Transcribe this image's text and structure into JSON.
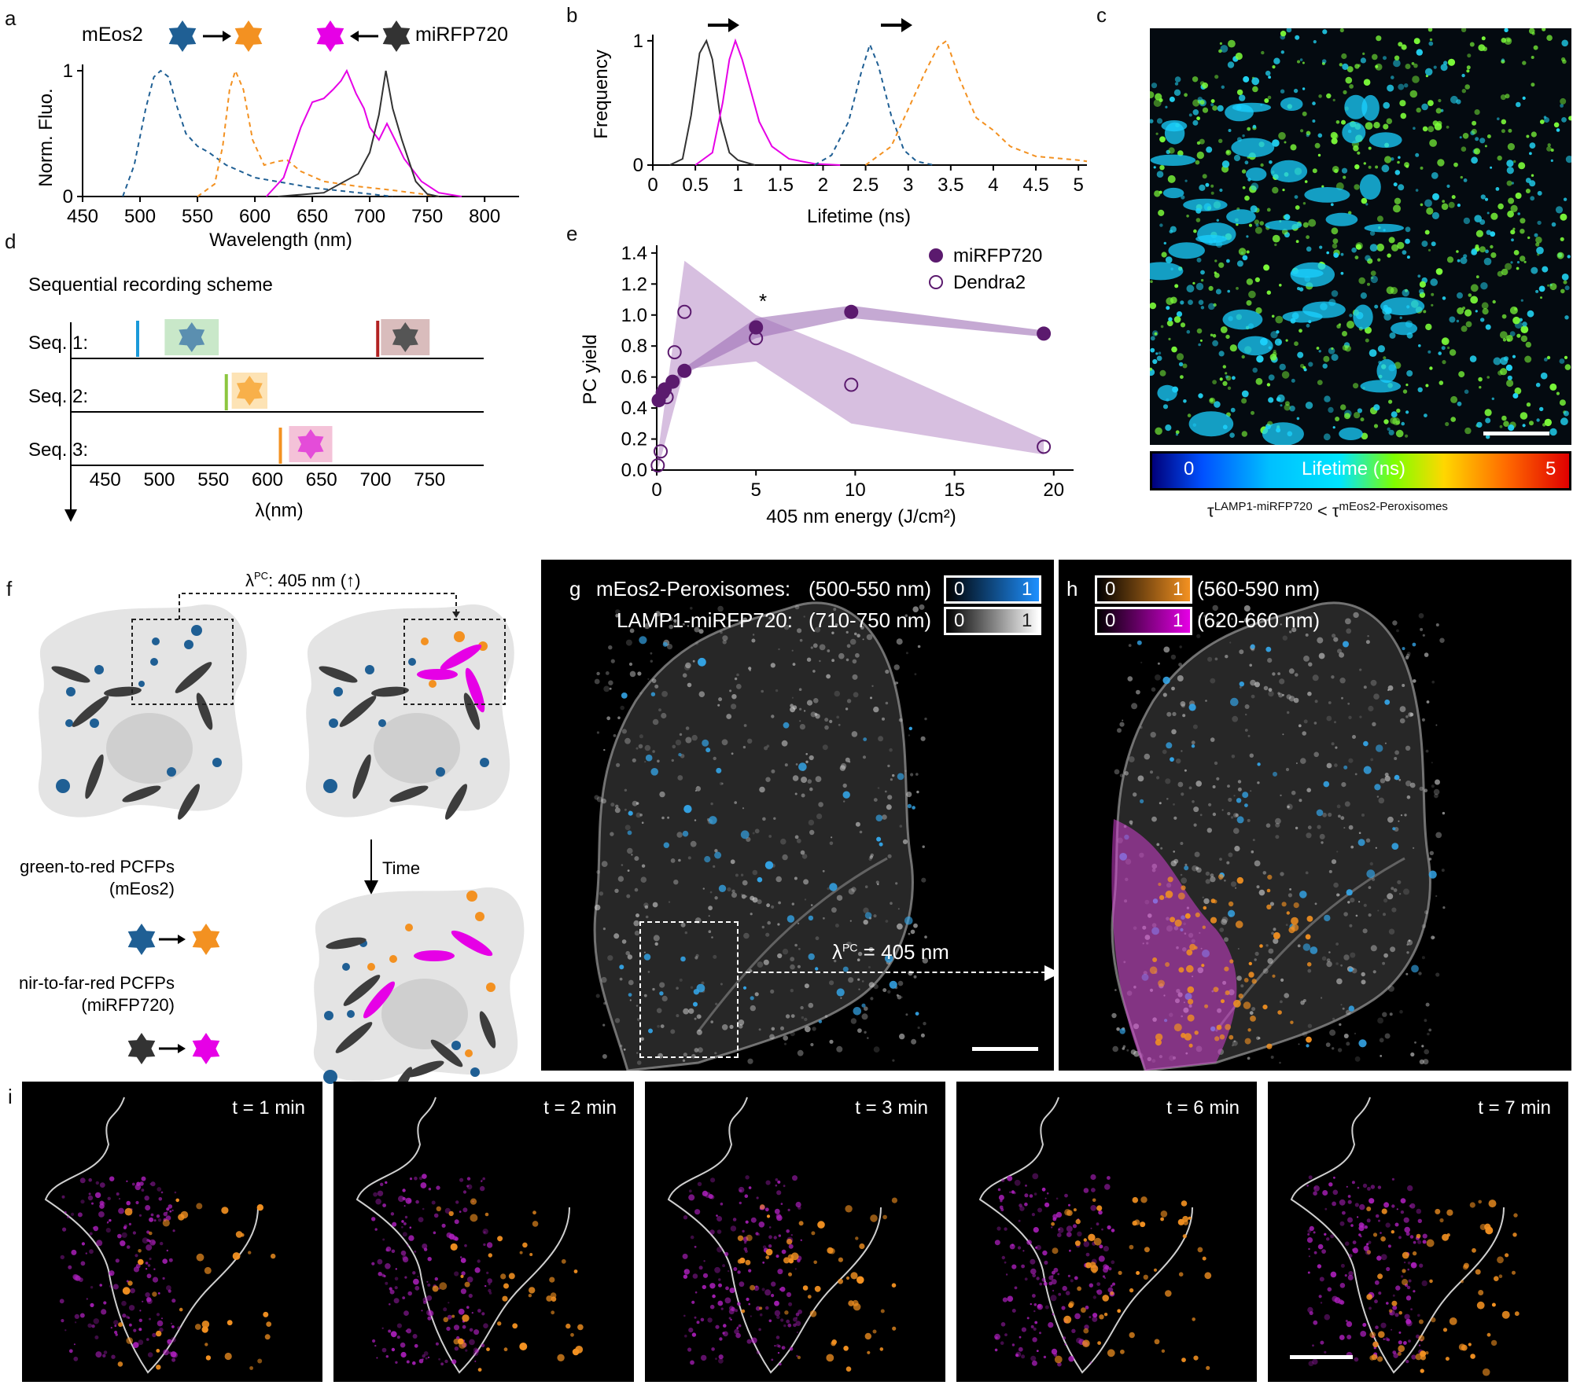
{
  "panel_letters": {
    "a": "a",
    "b": "b",
    "c": "c",
    "d": "d",
    "e": "e",
    "f": "f",
    "g": "g",
    "h": "h",
    "i": "i"
  },
  "colors": {
    "blue": "#1f5f94",
    "orange": "#f39121",
    "magenta": "#e600e6",
    "dark": "#333333",
    "cyan": "#00bfff",
    "purple": "#5b1a6e",
    "purple_fill": "#c9a9d6"
  },
  "panel_a": {
    "chart_data": {
      "type": "line",
      "title": "",
      "xlabel": "Wavelength (nm)",
      "ylabel": "Norm. Fluo.",
      "xlim": [
        450,
        830
      ],
      "ylim": [
        0,
        1.05
      ],
      "xticks": [
        "450",
        "500",
        "550",
        "600",
        "650",
        "700",
        "750",
        "800"
      ],
      "yticks": [
        "0",
        "1"
      ],
      "series": [
        {
          "name": "mEos2 green (dashed blue)",
          "points": [
            [
              485,
              0
            ],
            [
              495,
              0.25
            ],
            [
              505,
              0.7
            ],
            [
              512,
              0.95
            ],
            [
              518,
              1.0
            ],
            [
              525,
              0.95
            ],
            [
              532,
              0.72
            ],
            [
              540,
              0.5
            ],
            [
              550,
              0.4
            ],
            [
              560,
              0.35
            ],
            [
              575,
              0.25
            ],
            [
              600,
              0.15
            ],
            [
              650,
              0.07
            ],
            [
              700,
              0.02
            ],
            [
              720,
              0
            ]
          ]
        },
        {
          "name": "mEos2 red (dashed orange)",
          "points": [
            [
              550,
              0
            ],
            [
              565,
              0.1
            ],
            [
              572,
              0.4
            ],
            [
              578,
              0.85
            ],
            [
              583,
              1.0
            ],
            [
              590,
              0.85
            ],
            [
              598,
              0.45
            ],
            [
              608,
              0.25
            ],
            [
              620,
              0.28
            ],
            [
              628,
              0.29
            ],
            [
              640,
              0.2
            ],
            [
              660,
              0.12
            ],
            [
              690,
              0.08
            ],
            [
              720,
              0.05
            ],
            [
              745,
              0.02
            ],
            [
              760,
              0
            ]
          ]
        },
        {
          "name": "miRFP720 far-red (magenta)",
          "points": [
            [
              610,
              0
            ],
            [
              625,
              0.15
            ],
            [
              640,
              0.55
            ],
            [
              650,
              0.75
            ],
            [
              660,
              0.78
            ],
            [
              668,
              0.85
            ],
            [
              675,
              0.92
            ],
            [
              680,
              1.0
            ],
            [
              688,
              0.82
            ],
            [
              695,
              0.7
            ],
            [
              700,
              0.55
            ],
            [
              708,
              0.45
            ],
            [
              715,
              0.58
            ],
            [
              722,
              0.45
            ],
            [
              730,
              0.3
            ],
            [
              745,
              0.12
            ],
            [
              760,
              0.03
            ],
            [
              780,
              0
            ]
          ]
        },
        {
          "name": "miRFP720 nir (dark)",
          "points": [
            [
              620,
              0
            ],
            [
              660,
              0.03
            ],
            [
              690,
              0.18
            ],
            [
              700,
              0.35
            ],
            [
              708,
              0.65
            ],
            [
              714,
              1.0
            ],
            [
              720,
              0.7
            ],
            [
              728,
              0.45
            ],
            [
              740,
              0.12
            ],
            [
              750,
              0.02
            ],
            [
              760,
              0
            ]
          ]
        }
      ],
      "legend": {
        "left_name": "mEos2",
        "right_name": "miRFP720"
      }
    }
  },
  "panel_b": {
    "chart_data": {
      "type": "line",
      "xlabel": "Lifetime (ns)",
      "ylabel": "Frequency",
      "xlim": [
        0,
        5.1
      ],
      "ylim": [
        0,
        1.05
      ],
      "xticks": [
        "0",
        "0.5",
        "1",
        "1.5",
        "2",
        "2.5",
        "3",
        "3.5",
        "4",
        "4.5",
        "5"
      ],
      "yticks": [
        "0",
        "1"
      ],
      "series": [
        {
          "name": "miRFP720 nir (dark)",
          "points": [
            [
              0.2,
              0
            ],
            [
              0.35,
              0.05
            ],
            [
              0.45,
              0.4
            ],
            [
              0.55,
              0.9
            ],
            [
              0.63,
              1.0
            ],
            [
              0.7,
              0.85
            ],
            [
              0.8,
              0.35
            ],
            [
              0.9,
              0.1
            ],
            [
              1.0,
              0.04
            ],
            [
              1.2,
              0
            ]
          ]
        },
        {
          "name": "miRFP720 far-red (magenta)",
          "points": [
            [
              0.5,
              0
            ],
            [
              0.7,
              0.1
            ],
            [
              0.82,
              0.5
            ],
            [
              0.9,
              0.85
            ],
            [
              0.97,
              1.0
            ],
            [
              1.05,
              0.85
            ],
            [
              1.15,
              0.6
            ],
            [
              1.25,
              0.35
            ],
            [
              1.4,
              0.15
            ],
            [
              1.6,
              0.05
            ],
            [
              1.9,
              0.01
            ],
            [
              2.2,
              0
            ]
          ]
        },
        {
          "name": "mEos2 green (dashed blue)",
          "points": [
            [
              1.9,
              0
            ],
            [
              2.1,
              0.08
            ],
            [
              2.3,
              0.35
            ],
            [
              2.45,
              0.75
            ],
            [
              2.55,
              0.97
            ],
            [
              2.65,
              0.8
            ],
            [
              2.8,
              0.4
            ],
            [
              2.95,
              0.12
            ],
            [
              3.1,
              0.03
            ],
            [
              3.3,
              0
            ]
          ]
        },
        {
          "name": "mEos2 red (dashed orange)",
          "points": [
            [
              2.5,
              0
            ],
            [
              2.8,
              0.15
            ],
            [
              3.0,
              0.45
            ],
            [
              3.2,
              0.75
            ],
            [
              3.35,
              0.95
            ],
            [
              3.45,
              1.0
            ],
            [
              3.6,
              0.7
            ],
            [
              3.8,
              0.38
            ],
            [
              4.0,
              0.28
            ],
            [
              4.2,
              0.15
            ],
            [
              4.5,
              0.07
            ],
            [
              5.0,
              0.04
            ],
            [
              5.1,
              0.03
            ]
          ]
        }
      ]
    }
  },
  "panel_c": {
    "colorbar_min": "0",
    "colorbar_label": "Lifetime (ns)",
    "colorbar_max": "5",
    "tau_left": "τ",
    "tau_left_sup": "LAMP1-miRFP720",
    "tau_op": " < ",
    "tau_right": "τ",
    "tau_right_sup": "mEos2-Peroxisomes"
  },
  "panel_d": {
    "title": "Sequential recording scheme",
    "xlabel": "λ(nm)",
    "xticks": [
      "450",
      "500",
      "550",
      "600",
      "650",
      "700",
      "750"
    ],
    "rows": [
      {
        "label": "Seq. 1:",
        "lines": [
          {
            "nm": 480,
            "color": "#1a9ad9"
          },
          {
            "nm": 702,
            "color": "#b22222"
          }
        ],
        "boxes": [
          {
            "from": 505,
            "to": 555,
            "color": "#c9e8c9",
            "icon": "#5b8fb0"
          },
          {
            "from": 705,
            "to": 750,
            "color": "#d9bcbc",
            "icon": "#555"
          }
        ]
      },
      {
        "label": "Seq. 2:",
        "lines": [
          {
            "nm": 562,
            "color": "#8cc63f"
          }
        ],
        "boxes": [
          {
            "from": 567,
            "to": 600,
            "color": "#fde3b5",
            "icon": "#f8b04a"
          }
        ]
      },
      {
        "label": "Seq. 3:",
        "lines": [
          {
            "nm": 612,
            "color": "#f39121"
          }
        ],
        "boxes": [
          {
            "from": 620,
            "to": 660,
            "color": "#f4c2d8",
            "icon": "#e44cd9"
          }
        ]
      }
    ]
  },
  "panel_e": {
    "chart_data": {
      "type": "scatter",
      "xlabel": "405 nm energy (J/cm²)",
      "ylabel": "PC yield",
      "xlim": [
        0,
        21
      ],
      "ylim": [
        0,
        1.45
      ],
      "xticks": [
        "0",
        "5",
        "10",
        "15",
        "20"
      ],
      "yticks": [
        "0.0",
        "0.2",
        "0.4",
        "0.6",
        "0.8",
        "1.0",
        "1.2",
        "1.4"
      ],
      "annotation": "*",
      "series": [
        {
          "name": "miRFP720",
          "marker": "filled",
          "points": [
            [
              0.1,
              0.45
            ],
            [
              0.3,
              0.5
            ],
            [
              0.4,
              0.52
            ],
            [
              0.8,
              0.57
            ],
            [
              1.4,
              0.64
            ],
            [
              5,
              0.92
            ],
            [
              9.8,
              1.02
            ],
            [
              19.5,
              0.88
            ]
          ]
        },
        {
          "name": "Dendra2",
          "marker": "open",
          "points": [
            [
              0.05,
              0.03
            ],
            [
              0.2,
              0.12
            ],
            [
              0.5,
              0.47
            ],
            [
              0.9,
              0.76
            ],
            [
              1.4,
              1.02
            ],
            [
              5,
              0.85
            ],
            [
              9.8,
              0.55
            ],
            [
              19.5,
              0.15
            ]
          ]
        }
      ],
      "band_miRFP720": {
        "x": [
          0.1,
          1.4,
          5,
          9.8,
          19.5
        ],
        "lo": [
          0.42,
          0.62,
          0.85,
          0.98,
          0.86
        ],
        "hi": [
          0.48,
          0.66,
          0.98,
          1.06,
          0.9
        ]
      },
      "band_Dendra2": {
        "x": [
          0.05,
          1.4,
          5,
          9.8,
          19.5
        ],
        "lo": [
          0.0,
          0.65,
          0.7,
          0.3,
          0.1
        ],
        "hi": [
          0.1,
          1.35,
          1.0,
          0.75,
          0.2
        ]
      }
    }
  },
  "panel_f": {
    "lambda_text": "λ",
    "lambda_sup": "PC",
    "lambda_rest": ": 405 nm (↑)",
    "time_label": "Time",
    "green_red_line1": "green-to-red PCFPs",
    "green_red_line2": "(mEos2)",
    "nir_line1": "nir-to-far-red PCFPs",
    "nir_line2": "(miRFP720)"
  },
  "panel_g": {
    "row1_name": "mEos2-Peroxisomes:",
    "row1_range": "(500-550 nm)",
    "row2_name": "LAMP1-miRFP720:",
    "row2_range": "(710-750 nm)",
    "bar_min": "0",
    "bar_max": "1",
    "lambda_text": "λ",
    "lambda_sup": "PC",
    "lambda_rest": " = 405 nm"
  },
  "panel_h": {
    "row1_range": "(560-590 nm)",
    "row2_range": "(620-660 nm)",
    "bar_min": "0",
    "bar_max": "1"
  },
  "panel_i": {
    "frames": [
      "t = 1 min",
      "t = 2 min",
      "t = 3 min",
      "t = 6 min",
      "t = 7 min"
    ]
  }
}
